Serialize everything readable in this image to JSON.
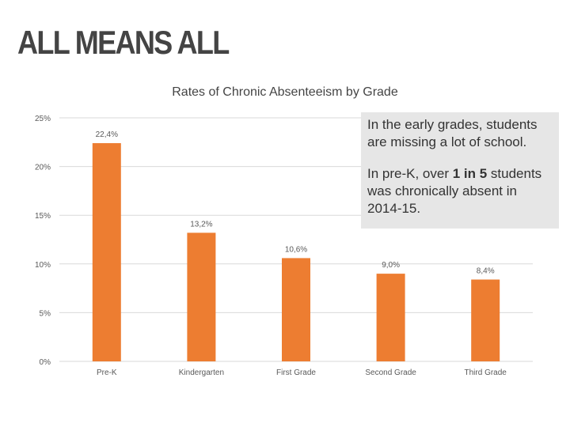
{
  "slide": {
    "title": "ALL MEANS ALL"
  },
  "callout": {
    "line1": "In the early grades, students are missing a lot of school.",
    "line2_prefix": "In pre-K, over ",
    "line2_bold": "1 in 5",
    "line2_suffix": " students was chronically absent in 2014-15."
  },
  "colors": {
    "bar": "#ed7d31",
    "grid": "#d9d9d9",
    "text": "#595959"
  },
  "chart_data": {
    "type": "bar",
    "title": "Rates of Chronic Absenteeism by Grade",
    "categories": [
      "Pre-K",
      "Kindergarten",
      "First Grade",
      "Second Grade",
      "Third Grade"
    ],
    "values": [
      22.4,
      13.2,
      10.6,
      9.0,
      8.4
    ],
    "value_labels": [
      "22,4%",
      "13,2%",
      "10,6%",
      "9,0%",
      "8,4%"
    ],
    "ylim": [
      0,
      25
    ],
    "yticks": [
      0,
      5,
      10,
      15,
      20,
      25
    ],
    "ytick_labels": [
      "0%",
      "5%",
      "10%",
      "15%",
      "20%",
      "25%"
    ],
    "xlabel": "",
    "ylabel": "",
    "grid": true
  }
}
